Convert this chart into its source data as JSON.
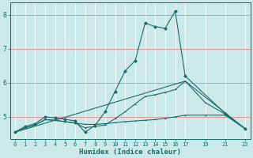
{
  "xlabel": "Humidex (Indice chaleur)",
  "bg_color": "#cce9e9",
  "grid_color": "#ffffff",
  "line_color": "#1a6b6b",
  "xlim": [
    -0.5,
    23.5
  ],
  "ylim": [
    4.35,
    8.35
  ],
  "xticks": [
    0,
    1,
    2,
    3,
    4,
    5,
    6,
    7,
    8,
    9,
    10,
    11,
    12,
    13,
    14,
    15,
    16,
    17,
    19,
    21,
    23
  ],
  "yticks": [
    5,
    6,
    7,
    8
  ],
  "line1_x": [
    0,
    1,
    2,
    3,
    4,
    5,
    6,
    7,
    8,
    9,
    10,
    11,
    12,
    13,
    14,
    15,
    16,
    17,
    21,
    23
  ],
  "line1_y": [
    4.55,
    4.72,
    4.8,
    5.0,
    4.97,
    4.93,
    4.88,
    4.55,
    4.75,
    5.15,
    5.75,
    6.35,
    6.65,
    7.75,
    7.65,
    7.6,
    8.1,
    6.2,
    5.1,
    4.65
  ],
  "line2_x": [
    0,
    1,
    2,
    3,
    4,
    5,
    6,
    7,
    8,
    9,
    10,
    11,
    12,
    13,
    14,
    15,
    16,
    17,
    19,
    21,
    23
  ],
  "line2_y": [
    4.55,
    4.68,
    4.76,
    4.92,
    4.9,
    4.86,
    4.82,
    4.78,
    4.78,
    4.8,
    4.83,
    4.86,
    4.88,
    4.9,
    4.92,
    4.96,
    5.0,
    5.05,
    5.05,
    5.05,
    4.65
  ],
  "line3_x": [
    0,
    1,
    2,
    3,
    4,
    5,
    6,
    7,
    8,
    9,
    10,
    11,
    12,
    13,
    14,
    15,
    16,
    17,
    19,
    21,
    23
  ],
  "line3_y": [
    4.55,
    4.68,
    4.76,
    4.92,
    4.9,
    4.86,
    4.82,
    4.68,
    4.72,
    4.76,
    4.95,
    5.15,
    5.38,
    5.6,
    5.65,
    5.72,
    5.8,
    6.05,
    5.42,
    5.08,
    4.65
  ],
  "line4_x": [
    0,
    17,
    23
  ],
  "line4_y": [
    4.55,
    6.05,
    4.65
  ],
  "figsize": [
    3.2,
    2.0
  ],
  "dpi": 100
}
